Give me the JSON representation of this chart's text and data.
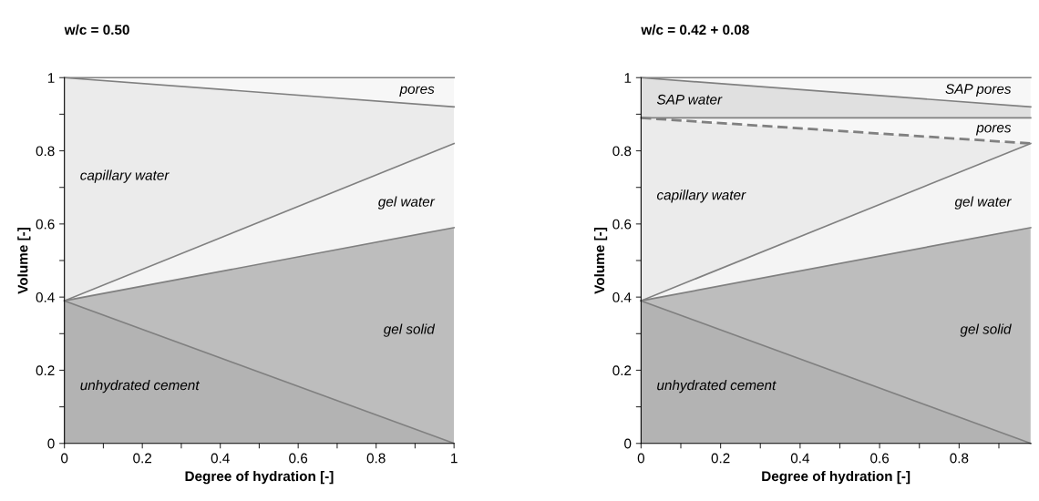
{
  "chart_data": [
    {
      "type": "area",
      "stacked": true,
      "title": "w/c = 0.50",
      "xlabel": "Degree of hydration [-]",
      "ylabel": "Volume [-]",
      "x": [
        0,
        1
      ],
      "series": [
        {
          "name": "unhydrated cement",
          "color": "#b3b3b3",
          "values": [
            0.39,
            0
          ]
        },
        {
          "name": "gel solid",
          "color": "#bdbdbd",
          "values": [
            0,
            0.59
          ]
        },
        {
          "name": "gel water",
          "color": "#f4f4f4",
          "values": [
            0,
            0.23
          ]
        },
        {
          "name": "capillary water",
          "color": "#ebebeb",
          "values": [
            0.61,
            0.1
          ]
        },
        {
          "name": "pores",
          "color": "#f7f7f7",
          "values": [
            0,
            0.08
          ]
        }
      ],
      "xlim": [
        0,
        1
      ],
      "ylim": [
        0,
        1
      ],
      "xticks": [
        0,
        {
          "value": 0.1,
          "label": null
        },
        0.2,
        {
          "value": 0.3,
          "label": null
        },
        0.4,
        {
          "value": 0.5,
          "label": null
        },
        0.6,
        {
          "value": 0.7,
          "label": null
        },
        0.8,
        {
          "value": 0.9,
          "label": null
        },
        1
      ],
      "yticks": [
        0,
        {
          "value": 0.1,
          "label": null
        },
        0.2,
        {
          "value": 0.3,
          "label": null
        },
        0.4,
        {
          "value": 0.5,
          "label": null
        },
        0.6,
        {
          "value": 0.7,
          "label": null
        },
        0.8,
        {
          "value": 0.9,
          "label": null
        },
        1
      ],
      "grid": false
    },
    {
      "type": "area",
      "stacked": true,
      "title": "w/c = 0.42 + 0.08",
      "xlabel": "Degree of hydration [-]",
      "ylabel": "Volume [-]",
      "x": [
        0,
        0.98
      ],
      "series": [
        {
          "name": "unhydrated cement",
          "color": "#b3b3b3",
          "values": [
            0.39,
            0
          ]
        },
        {
          "name": "gel solid",
          "color": "#bdbdbd",
          "values": [
            0,
            0.59
          ]
        },
        {
          "name": "gel water",
          "color": "#f4f4f4",
          "values": [
            0,
            0.23
          ]
        },
        {
          "name": "capillary water",
          "color": "#ebebeb",
          "values": [
            0.5,
            0
          ],
          "line_style": "dashed"
        },
        {
          "name": "pores",
          "color": "#f7f7f7",
          "values": [
            0,
            0.07
          ]
        },
        {
          "name": "SAP water",
          "color": "#e0e0e0",
          "values": [
            0.11,
            0.03
          ]
        },
        {
          "name": "SAP pores",
          "color": "#f7f7f7",
          "values": [
            0,
            0.08
          ]
        }
      ],
      "xlim": [
        0,
        0.98
      ],
      "ylim": [
        0,
        1
      ],
      "xticks": [
        0,
        {
          "value": 0.1,
          "label": null
        },
        0.2,
        {
          "value": 0.3,
          "label": null
        },
        0.4,
        {
          "value": 0.5,
          "label": null
        },
        0.6,
        {
          "value": 0.7,
          "label": null
        },
        0.8,
        {
          "value": 0.9,
          "label": null
        }
      ],
      "yticks": [
        0,
        {
          "value": 0.1,
          "label": null
        },
        0.2,
        {
          "value": 0.3,
          "label": null
        },
        0.4,
        {
          "value": 0.5,
          "label": null
        },
        0.6,
        {
          "value": 0.7,
          "label": null
        },
        0.8,
        {
          "value": 0.9,
          "label": null
        },
        1
      ],
      "grid": false
    }
  ]
}
